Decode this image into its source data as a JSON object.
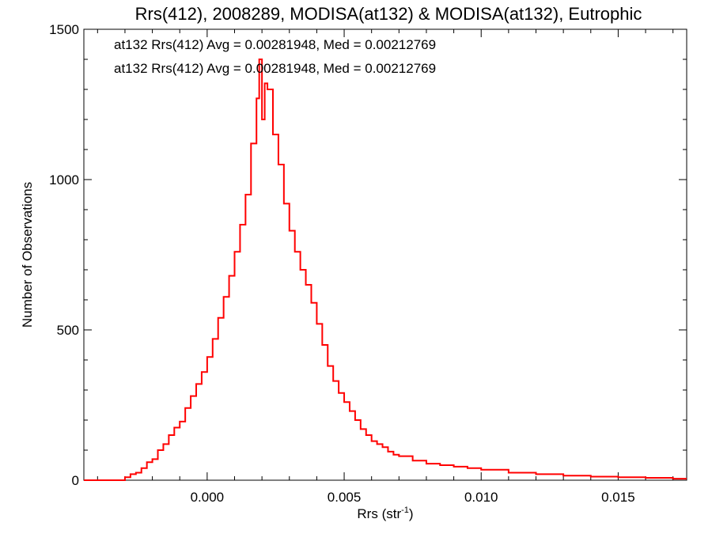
{
  "chart_data": {
    "type": "step",
    "title": "Rrs(412), 2008289, MODISA(at132) & MODISA(at132), Eutrophic",
    "xlabel": "Rrs (str",
    "xlabel_sup": "-1",
    "xlabel_close": ")",
    "ylabel": "Number of Observations",
    "xlim": [
      -0.0045,
      0.0175
    ],
    "ylim": [
      0,
      1500
    ],
    "xticks": [
      0.0,
      0.005,
      0.01,
      0.015
    ],
    "xtick_labels": [
      "0.000",
      "0.005",
      "0.010",
      "0.015"
    ],
    "yticks": [
      0,
      500,
      1000,
      1500
    ],
    "ytick_labels": [
      "0",
      "500",
      "1000",
      "1500"
    ],
    "grid": false,
    "annotations": [
      {
        "text": "at132 Rrs(412) Avg = 0.00281948, Med = 0.00212769",
        "color": "#000000"
      },
      {
        "text": "at132 Rrs(412) Avg = 0.00281948, Med = 0.00212769",
        "color": "#ff0000"
      }
    ],
    "series": [
      {
        "color": "#ff0000",
        "points": [
          [
            -0.0045,
            0
          ],
          [
            -0.004,
            0
          ],
          [
            -0.0035,
            0
          ],
          [
            -0.003,
            10
          ],
          [
            -0.0028,
            20
          ],
          [
            -0.0026,
            25
          ],
          [
            -0.0024,
            40
          ],
          [
            -0.0022,
            60
          ],
          [
            -0.002,
            70
          ],
          [
            -0.0018,
            100
          ],
          [
            -0.0016,
            120
          ],
          [
            -0.0014,
            150
          ],
          [
            -0.0012,
            175
          ],
          [
            -0.001,
            195
          ],
          [
            -0.0008,
            240
          ],
          [
            -0.0006,
            280
          ],
          [
            -0.0004,
            320
          ],
          [
            -0.0002,
            360
          ],
          [
            0.0,
            410
          ],
          [
            0.0002,
            470
          ],
          [
            0.0004,
            540
          ],
          [
            0.0006,
            610
          ],
          [
            0.0008,
            680
          ],
          [
            0.001,
            760
          ],
          [
            0.0012,
            850
          ],
          [
            0.0014,
            950
          ],
          [
            0.0016,
            1120
          ],
          [
            0.0018,
            1270
          ],
          [
            0.0019,
            1400
          ],
          [
            0.002,
            1200
          ],
          [
            0.0021,
            1320
          ],
          [
            0.0022,
            1300
          ],
          [
            0.0024,
            1150
          ],
          [
            0.0026,
            1050
          ],
          [
            0.0028,
            920
          ],
          [
            0.003,
            830
          ],
          [
            0.0032,
            760
          ],
          [
            0.0034,
            700
          ],
          [
            0.0036,
            650
          ],
          [
            0.0038,
            590
          ],
          [
            0.004,
            520
          ],
          [
            0.0042,
            450
          ],
          [
            0.0044,
            380
          ],
          [
            0.0046,
            330
          ],
          [
            0.0048,
            290
          ],
          [
            0.005,
            260
          ],
          [
            0.0052,
            230
          ],
          [
            0.0054,
            200
          ],
          [
            0.0056,
            170
          ],
          [
            0.0058,
            150
          ],
          [
            0.006,
            130
          ],
          [
            0.0062,
            120
          ],
          [
            0.0064,
            110
          ],
          [
            0.0066,
            95
          ],
          [
            0.0068,
            85
          ],
          [
            0.007,
            80
          ],
          [
            0.0075,
            65
          ],
          [
            0.008,
            55
          ],
          [
            0.0085,
            50
          ],
          [
            0.009,
            45
          ],
          [
            0.0095,
            40
          ],
          [
            0.01,
            35
          ],
          [
            0.011,
            25
          ],
          [
            0.012,
            20
          ],
          [
            0.013,
            15
          ],
          [
            0.014,
            12
          ],
          [
            0.015,
            10
          ],
          [
            0.016,
            8
          ],
          [
            0.017,
            5
          ],
          [
            0.0175,
            5
          ]
        ]
      }
    ]
  }
}
